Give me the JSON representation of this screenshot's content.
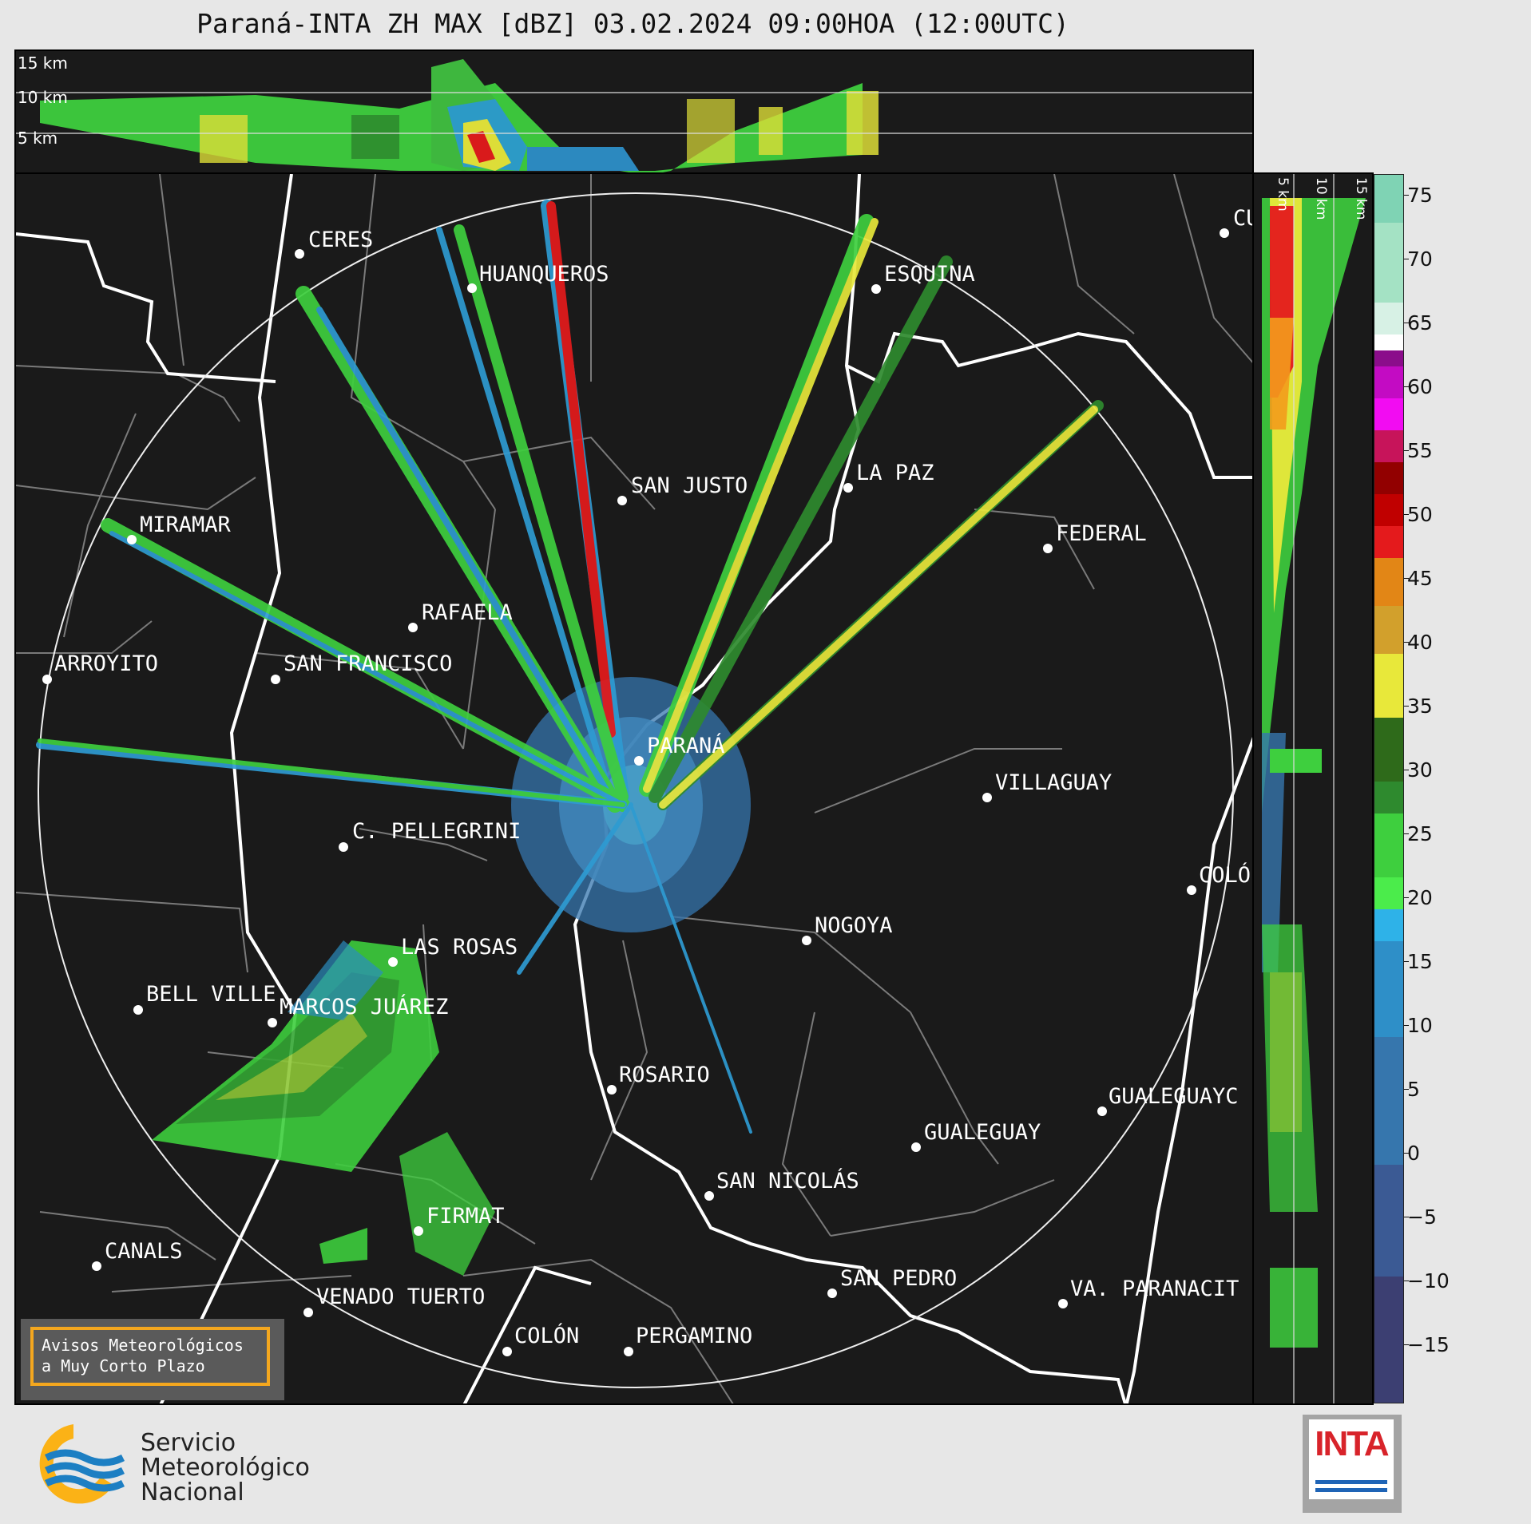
{
  "title": "Paraná-INTA ZH MAX [dBZ] 03.02.2024 09:00HOA (12:00UTC)",
  "top_panel": {
    "altitudes": [
      "15 km",
      "10 km",
      "5 km"
    ]
  },
  "side_panel": {
    "altitudes": [
      "5 km",
      "10 km",
      "15 km"
    ]
  },
  "colorbar": {
    "ticks": [
      "75",
      "70",
      "65",
      "60",
      "55",
      "50",
      "45",
      "40",
      "35",
      "30",
      "25",
      "20",
      "15",
      "10",
      "5",
      "0",
      "−5",
      "−10",
      "−15"
    ]
  },
  "cities": [
    {
      "name": "CERES"
    },
    {
      "name": "HUANQUEROS"
    },
    {
      "name": "ESQUINA"
    },
    {
      "name": "CU"
    },
    {
      "name": "SAN JUSTO"
    },
    {
      "name": "LA PAZ"
    },
    {
      "name": "MIRAMAR"
    },
    {
      "name": "FEDERAL"
    },
    {
      "name": "RAFAELA"
    },
    {
      "name": "ARROYITO"
    },
    {
      "name": "SAN FRANCISCO"
    },
    {
      "name": "PARANÁ"
    },
    {
      "name": "VILLAGUAY"
    },
    {
      "name": "C. PELLEGRINI"
    },
    {
      "name": "COLÓ"
    },
    {
      "name": "NOGOYA"
    },
    {
      "name": "LAS ROSAS"
    },
    {
      "name": "BELL VILLE"
    },
    {
      "name": "MARCOS JUÁREZ"
    },
    {
      "name": "ROSARIO"
    },
    {
      "name": "GUALEGUAYC"
    },
    {
      "name": "GUALEGUAY"
    },
    {
      "name": "SAN NICOLÁS"
    },
    {
      "name": "FIRMAT"
    },
    {
      "name": "CANALS"
    },
    {
      "name": "SAN PEDRO"
    },
    {
      "name": "VA. PARANACIT"
    },
    {
      "name": "VENADO TUERTO"
    },
    {
      "name": "COLÓN"
    },
    {
      "name": "PERGAMINO"
    }
  ],
  "avisos": {
    "line1": "Avisos Meteorológicos",
    "line2": "a Muy Corto Plazo"
  },
  "smn": {
    "line1": "Servicio",
    "line2": "Meteorológico",
    "line3": "Nacional"
  },
  "inta": {
    "text": "INTA"
  },
  "colors": {
    "background": "#1a1a1a",
    "page": "#e7e7e7",
    "avisos_border": "#f4a71e",
    "smn_orange": "#fbb216",
    "smn_blue": "#1d7fc3",
    "inta_red": "#d8232a"
  }
}
